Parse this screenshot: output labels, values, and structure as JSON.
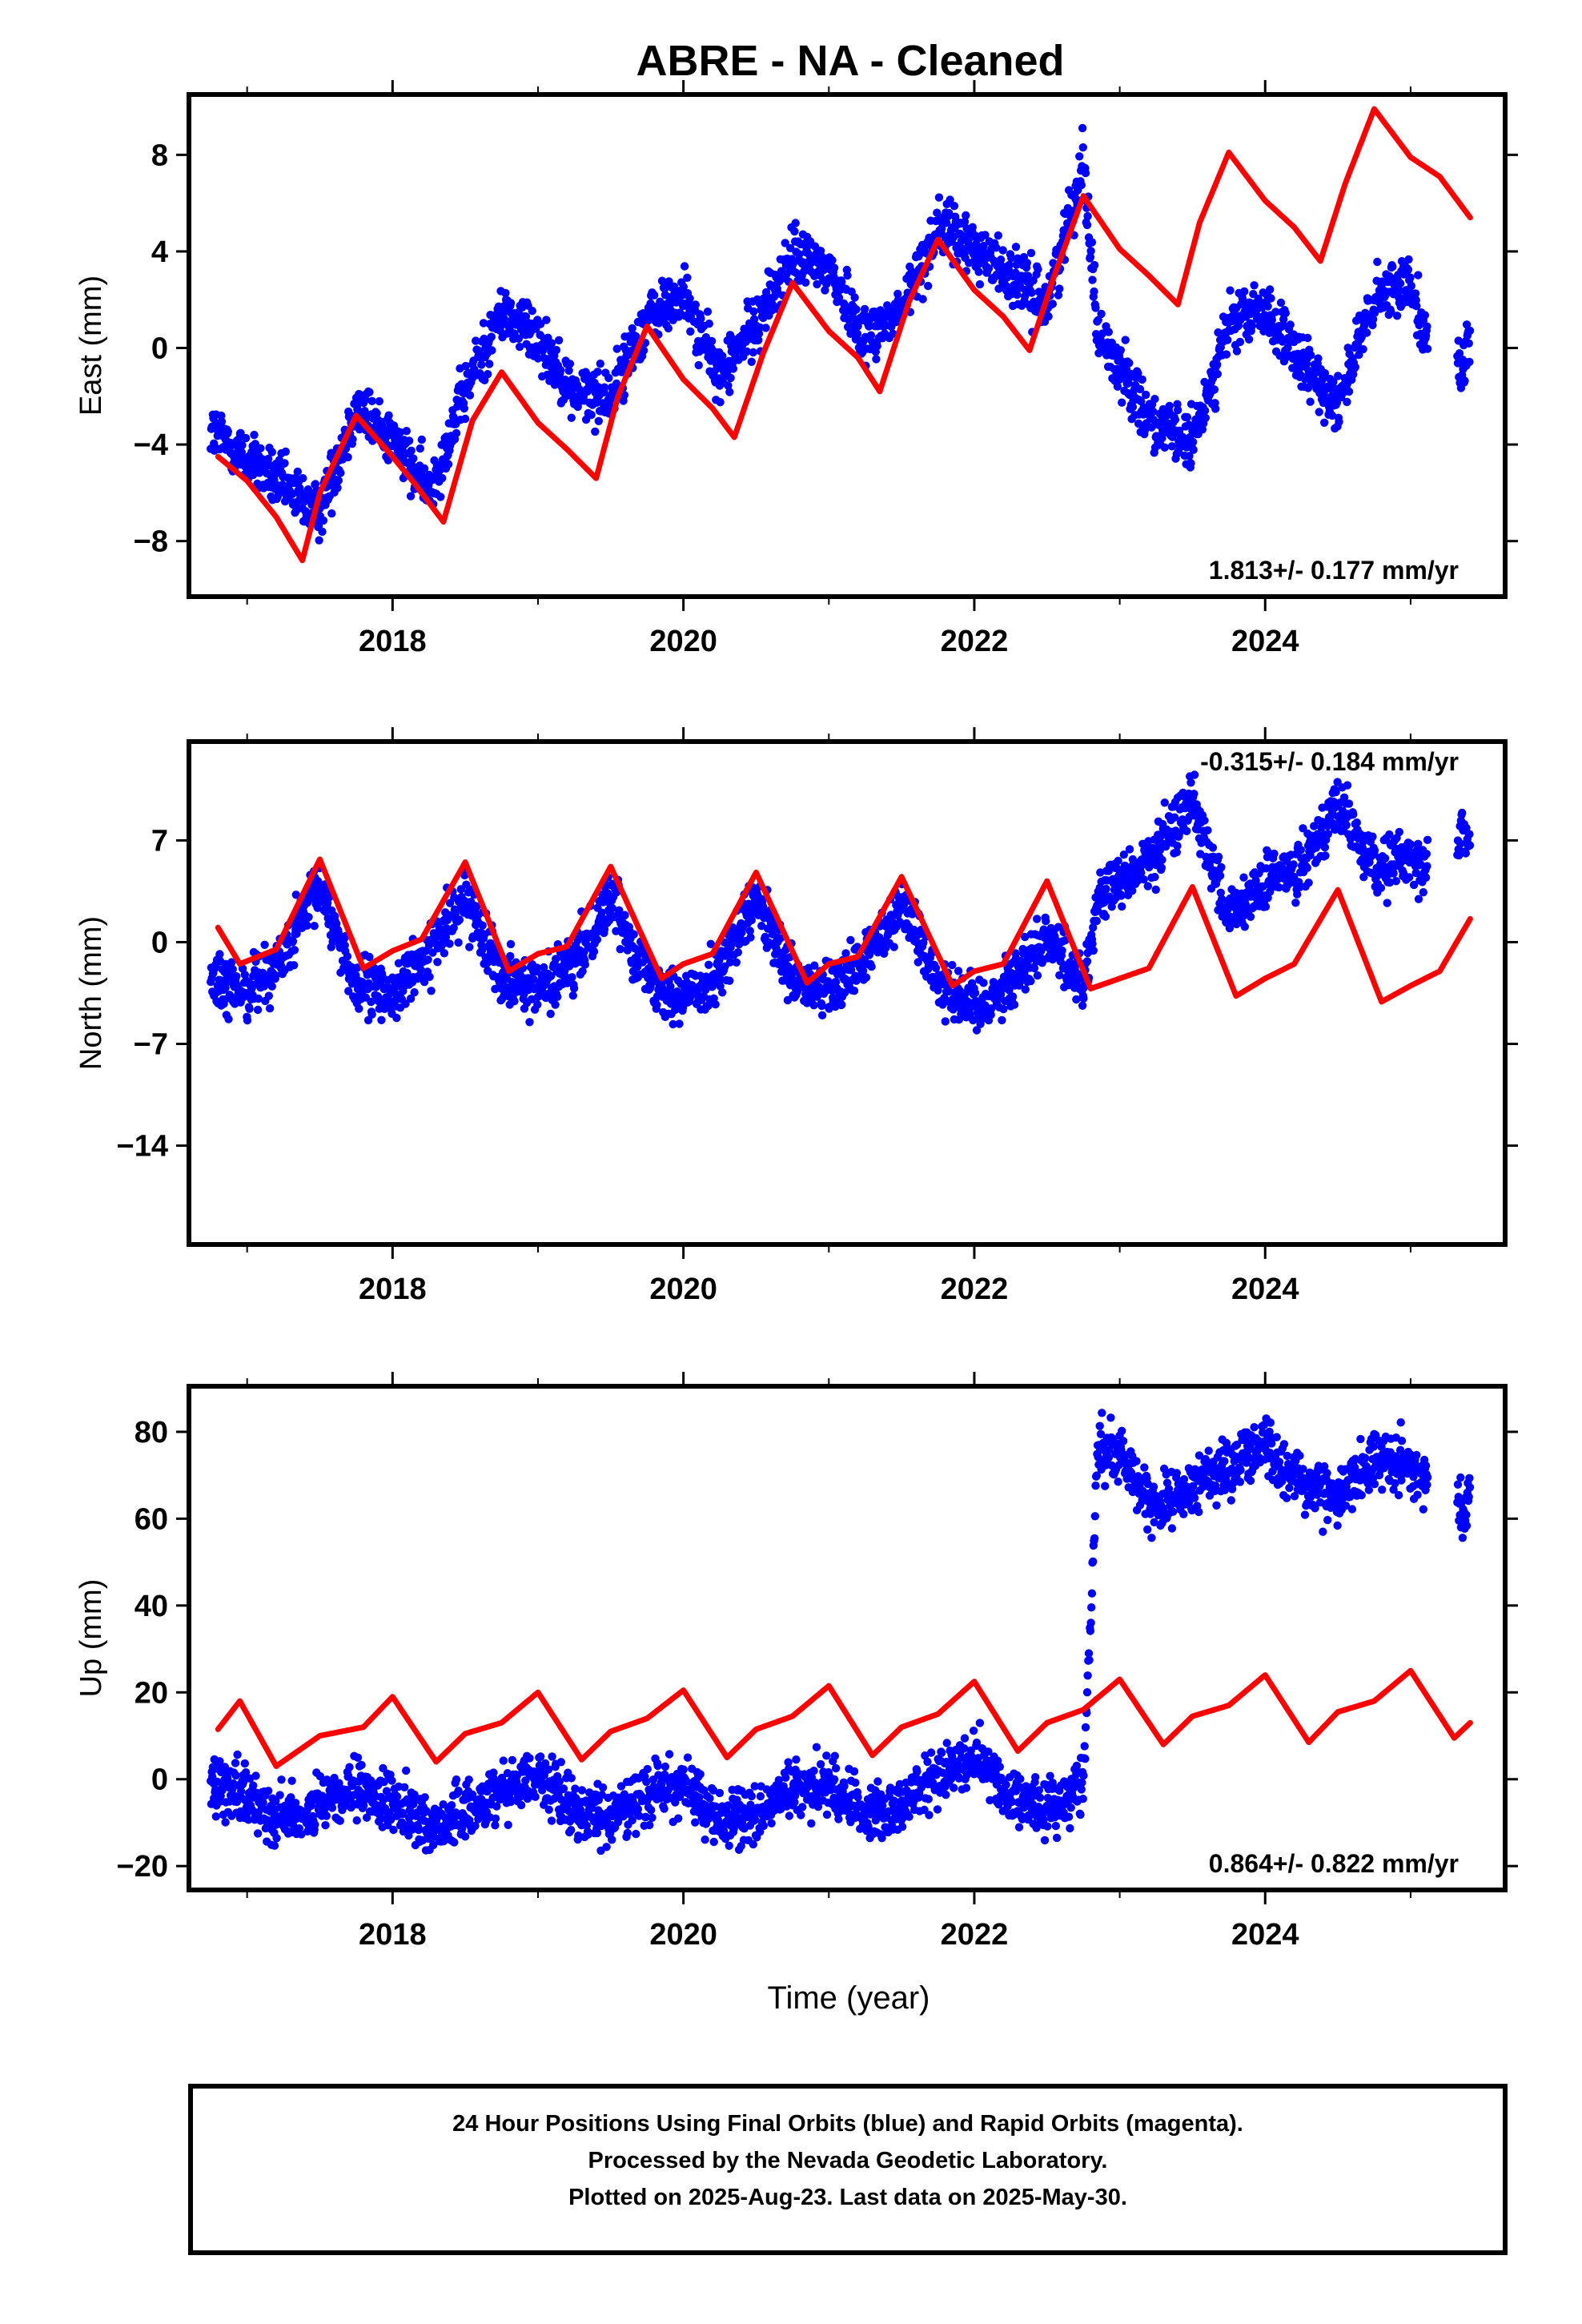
{
  "title": "ABRE  - NA - Cleaned",
  "xlabel": "Time (year)",
  "footer": {
    "line1": "24 Hour Positions Using Final Orbits (blue) and Rapid Orbits (magenta).",
    "line2": "Processed by the Nevada Geodetic Laboratory.",
    "line3": "Plotted on 2025-Aug-23. Last data on 2025-May-30."
  },
  "colors": {
    "data": "#0000ff",
    "model": "#ff0000",
    "frame": "#000000"
  },
  "chart_data": [
    {
      "type": "scatter",
      "ylabel": "East (mm)",
      "annotation": "1.813+/- 0.177 mm/yr",
      "annotation_position": "bottom-right",
      "xlim": [
        2016.6,
        2025.65
      ],
      "ylim": [
        -10.3,
        10.5
      ],
      "xticks": [
        2018,
        2020,
        2022,
        2024
      ],
      "yticks": [
        -8,
        -4,
        0,
        4,
        8
      ],
      "ytick_labels": [
        "−8",
        "−4",
        "0",
        "4",
        "8"
      ],
      "data_range": [
        2016.75,
        2025.41
      ],
      "data_gap": [
        2025.12,
        2025.32
      ],
      "series": [
        {
          "style": "points",
          "x": [
            2016.75,
            2017.0,
            2017.25,
            2017.5,
            2017.75,
            2018.0,
            2018.25,
            2018.5,
            2018.75,
            2019.0,
            2019.25,
            2019.5,
            2019.75,
            2020.0,
            2020.25,
            2020.5,
            2020.75,
            2021.0,
            2021.25,
            2021.5,
            2021.75,
            2022.0,
            2022.25,
            2022.5,
            2022.75,
            2022.85,
            2023.0,
            2023.25,
            2023.5,
            2023.75,
            2024.0,
            2024.25,
            2024.5,
            2024.75,
            2025.0,
            2025.1,
            2025.35,
            2025.41
          ],
          "y": [
            -3.4,
            -4.6,
            -5.8,
            -6.8,
            -2.4,
            -3.8,
            -6.0,
            -1.8,
            1.5,
            0.5,
            -1.9,
            -2.0,
            1.2,
            2.2,
            -1.2,
            1.0,
            3.8,
            3.3,
            0.5,
            1.5,
            5.0,
            4.2,
            3.0,
            1.8,
            7.8,
            0.5,
            -0.8,
            -3.2,
            -4.0,
            1.0,
            1.6,
            -0.8,
            -2.2,
            1.9,
            2.9,
            0.5,
            -1.0,
            0.5
          ]
        },
        {
          "style": "line",
          "x": [
            2016.8,
            2017.0,
            2017.2,
            2017.38,
            2017.5,
            2017.75,
            2018.0,
            2018.15,
            2018.35,
            2018.55,
            2018.75,
            2019.0,
            2019.2,
            2019.4,
            2019.55,
            2019.75,
            2020.0,
            2020.2,
            2020.35,
            2020.55,
            2020.75,
            2021.0,
            2021.2,
            2021.35,
            2021.55,
            2021.75,
            2022.0,
            2022.2,
            2022.38,
            2022.55,
            2022.75,
            2023.0,
            2023.2,
            2023.4,
            2023.55,
            2023.75,
            2024.0,
            2024.2,
            2024.38,
            2024.55,
            2024.75,
            2025.0,
            2025.2,
            2025.41
          ],
          "y": [
            -4.5,
            -5.5,
            -7.0,
            -8.8,
            -6.0,
            -2.8,
            -4.5,
            -5.6,
            -7.2,
            -3.0,
            -1.0,
            -3.1,
            -4.2,
            -5.4,
            -2.0,
            0.9,
            -1.3,
            -2.5,
            -3.7,
            -0.2,
            2.7,
            0.7,
            -0.4,
            -1.8,
            1.9,
            4.5,
            2.4,
            1.3,
            -0.1,
            3.0,
            6.3,
            4.1,
            3.0,
            1.8,
            5.2,
            8.1,
            6.1,
            5.0,
            3.6,
            6.8,
            9.9,
            7.9,
            7.1,
            5.4
          ]
        }
      ]
    },
    {
      "type": "scatter",
      "ylabel": "North (mm)",
      "annotation": "-0.315+/- 0.184 mm/yr",
      "annotation_position": "top-right",
      "xlim": [
        2016.6,
        2025.65
      ],
      "ylim": [
        -20.8,
        13.8
      ],
      "xticks": [
        2018,
        2020,
        2022,
        2024
      ],
      "yticks": [
        -14,
        -7,
        0,
        7
      ],
      "ytick_labels": [
        "−14",
        "−7",
        "0",
        "7"
      ],
      "data_range": [
        2016.75,
        2025.41
      ],
      "data_gap": [
        2025.12,
        2025.32
      ],
      "series": [
        {
          "style": "points",
          "x": [
            2016.75,
            2016.85,
            2017.0,
            2017.25,
            2017.5,
            2017.75,
            2018.0,
            2018.25,
            2018.5,
            2018.75,
            2019.0,
            2019.25,
            2019.5,
            2019.75,
            2020.0,
            2020.25,
            2020.5,
            2020.75,
            2021.0,
            2021.25,
            2021.5,
            2021.75,
            2022.0,
            2022.25,
            2022.5,
            2022.75,
            2022.85,
            2023.0,
            2023.25,
            2023.5,
            2023.75,
            2024.0,
            2024.25,
            2024.5,
            2024.75,
            2025.0,
            2025.1,
            2025.35,
            2025.41
          ],
          "y": [
            -2.0,
            -3.5,
            -3.2,
            -1.0,
            3.8,
            -3.0,
            -3.6,
            -0.8,
            3.0,
            -2.0,
            -3.2,
            -1.6,
            3.2,
            -2.2,
            -4.0,
            -2.0,
            2.8,
            -2.8,
            -3.5,
            -1.2,
            2.7,
            -2.5,
            -4.5,
            -2.8,
            0.5,
            -3.0,
            3.0,
            4.0,
            6.0,
            10.0,
            1.5,
            4.0,
            5.5,
            9.5,
            5.0,
            6.0,
            5.0,
            7.5,
            7.0
          ]
        },
        {
          "style": "line",
          "x": [
            2016.8,
            2016.95,
            2017.2,
            2017.5,
            2017.8,
            2018.0,
            2018.2,
            2018.5,
            2018.8,
            2019.0,
            2019.2,
            2019.5,
            2019.85,
            2020.0,
            2020.2,
            2020.5,
            2020.85,
            2021.0,
            2021.2,
            2021.5,
            2021.85,
            2022.0,
            2022.2,
            2022.5,
            2022.8,
            2023.0,
            2023.2,
            2023.5,
            2023.8,
            2024.0,
            2024.2,
            2024.5,
            2024.8,
            2025.0,
            2025.2,
            2025.41
          ],
          "y": [
            1.0,
            -1.5,
            -0.5,
            5.7,
            -1.8,
            -0.6,
            0.2,
            5.5,
            -2.0,
            -0.8,
            -0.3,
            5.2,
            -2.5,
            -1.5,
            -0.8,
            4.8,
            -2.8,
            -1.5,
            -1.0,
            4.5,
            -3.0,
            -2.0,
            -1.5,
            4.2,
            -3.2,
            -2.5,
            -1.8,
            3.8,
            -3.7,
            -2.5,
            -1.5,
            3.6,
            -4.1,
            -3.0,
            -2.0,
            1.6
          ]
        }
      ]
    },
    {
      "type": "scatter",
      "ylabel": "Up (mm)",
      "annotation": "0.864+/- 0.822 mm/yr",
      "annotation_position": "bottom-right",
      "xlim": [
        2016.6,
        2025.65
      ],
      "ylim": [
        -25.5,
        90.5
      ],
      "xticks": [
        2018,
        2020,
        2022,
        2024
      ],
      "yticks": [
        -20,
        0,
        20,
        40,
        60,
        80
      ],
      "ytick_labels": [
        "−20",
        "0",
        "20",
        "40",
        "60",
        "80"
      ],
      "data_range": [
        2016.75,
        2025.41
      ],
      "data_gap": [
        2025.12,
        2025.32
      ],
      "series": [
        {
          "style": "points",
          "x": [
            2016.75,
            2017.0,
            2017.25,
            2017.5,
            2017.75,
            2018.0,
            2018.25,
            2018.5,
            2018.75,
            2019.0,
            2019.25,
            2019.5,
            2019.75,
            2020.0,
            2020.25,
            2020.5,
            2020.75,
            2021.0,
            2021.25,
            2021.5,
            2021.75,
            2022.0,
            2022.25,
            2022.5,
            2022.75,
            2022.85,
            2023.0,
            2023.25,
            2023.5,
            2023.75,
            2024.0,
            2024.25,
            2024.5,
            2024.75,
            2025.0,
            2025.1,
            2025.35,
            2025.41
          ],
          "y": [
            -1.0,
            -4.0,
            -9.0,
            -6.5,
            -3.0,
            -5.0,
            -11.0,
            -8.0,
            -2.0,
            1.0,
            -7.0,
            -9.0,
            -3.0,
            -1.0,
            -10.0,
            -8.0,
            -3.0,
            -1.0,
            -8.0,
            -6.0,
            1.0,
            5.0,
            -4.0,
            -7.0,
            -1.0,
            77.0,
            75.0,
            62.0,
            68.0,
            72.0,
            77.0,
            68.0,
            65.0,
            74.0,
            72.0,
            70.0,
            63.0,
            65.0
          ]
        },
        {
          "style": "line",
          "x": [
            2016.8,
            2016.95,
            2017.2,
            2017.5,
            2017.8,
            2018.0,
            2018.3,
            2018.5,
            2018.75,
            2019.0,
            2019.3,
            2019.5,
            2019.75,
            2020.0,
            2020.3,
            2020.5,
            2020.75,
            2021.0,
            2021.3,
            2021.5,
            2021.75,
            2022.0,
            2022.3,
            2022.5,
            2022.75,
            2023.0,
            2023.3,
            2023.5,
            2023.75,
            2024.0,
            2024.3,
            2024.5,
            2024.75,
            2025.0,
            2025.3,
            2025.41
          ],
          "y": [
            11.5,
            18.0,
            3.0,
            10.0,
            12.0,
            19.0,
            4.0,
            10.5,
            13.0,
            20.0,
            4.5,
            11.0,
            14.0,
            20.5,
            5.0,
            11.5,
            14.5,
            21.5,
            5.5,
            12.0,
            15.0,
            22.5,
            6.5,
            13.0,
            16.0,
            23.0,
            8.0,
            14.5,
            17.0,
            24.0,
            8.5,
            15.5,
            18.0,
            25.0,
            9.5,
            13.0
          ]
        }
      ]
    }
  ]
}
